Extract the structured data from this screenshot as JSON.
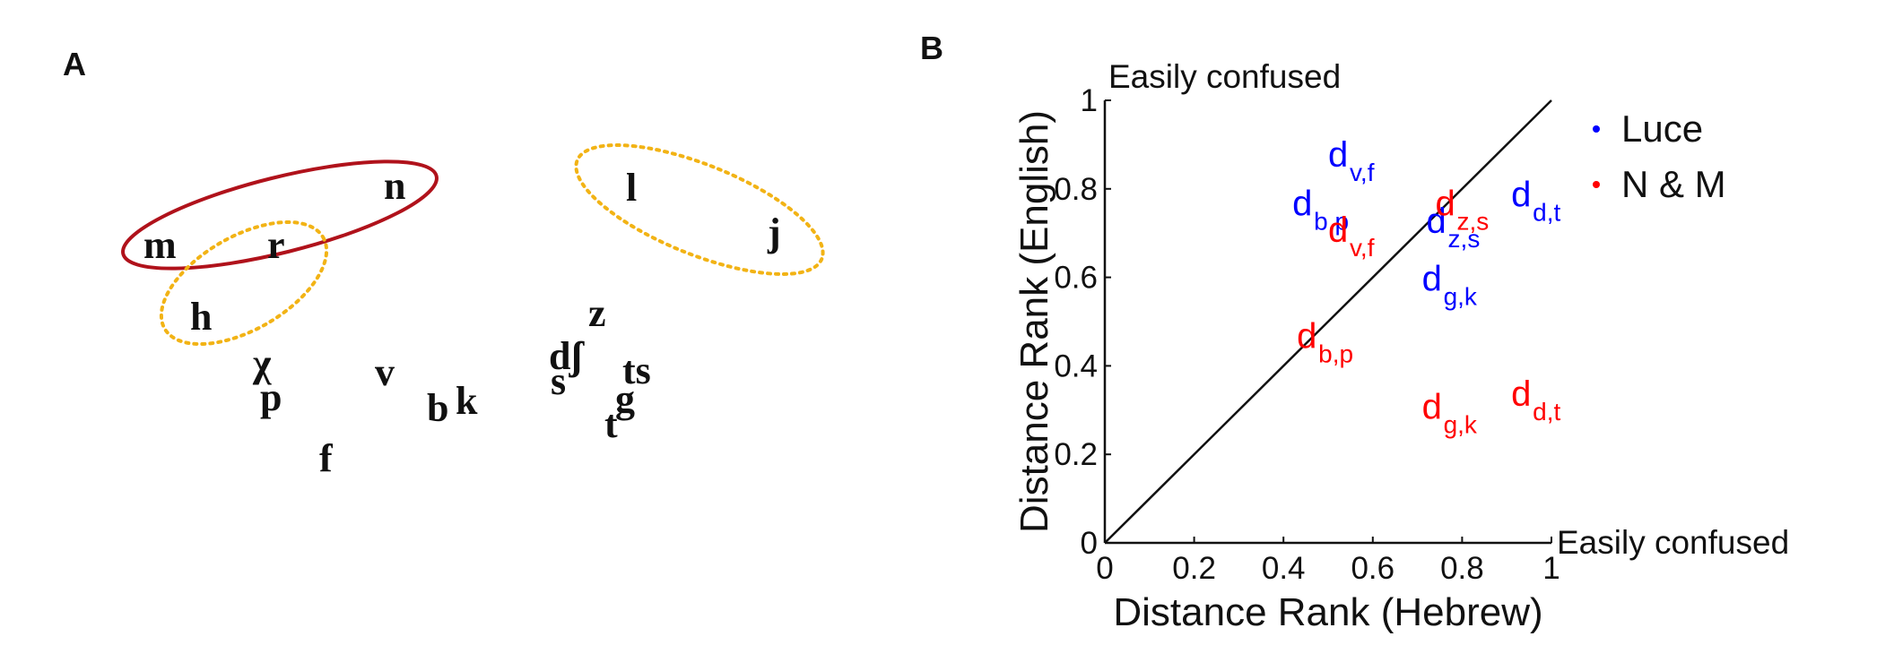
{
  "panel_a": {
    "label": "A",
    "phonemes": [
      "m",
      "r",
      "n",
      "h",
      "l",
      "j",
      "z",
      "χ",
      "p",
      "v",
      "b",
      "k",
      "dʃ",
      "s",
      "ts",
      "g",
      "t",
      "f"
    ],
    "clusters": [
      {
        "members": [
          "m",
          "r",
          "n"
        ],
        "color": "#b0121b",
        "style": "solid"
      },
      {
        "members": [
          "r",
          "h"
        ],
        "color": "#f2b315",
        "style": "dotted"
      },
      {
        "members": [
          "l",
          "j"
        ],
        "color": "#f2b315",
        "style": "dotted"
      }
    ]
  },
  "panel_b": {
    "label": "B",
    "corner_top": "Easily confused",
    "corner_right": "Easily confused",
    "legend": [
      {
        "name": "Luce",
        "color": "#0000ff"
      },
      {
        "name": "N & M",
        "color": "#ff0000"
      }
    ]
  },
  "chart_data": {
    "type": "scatter",
    "xlabel": "Distance Rank (Hebrew)",
    "ylabel": "Distance Rank (English)",
    "xlim": [
      0,
      1
    ],
    "ylim": [
      0,
      1
    ],
    "xticks": [
      "0",
      "0.2",
      "0.4",
      "0.6",
      "0.8",
      "1"
    ],
    "yticks": [
      "0",
      "0.2",
      "0.4",
      "0.6",
      "0.8",
      "1"
    ],
    "grid": false,
    "legend_position": "top-right, outside",
    "reference_line": "y = x",
    "series": [
      {
        "name": "Luce",
        "color": "#0000ff",
        "points": [
          {
            "label": "d",
            "sub": "v,f",
            "x": 0.5,
            "y": 0.85
          },
          {
            "label": "d",
            "sub": "b,p",
            "x": 0.42,
            "y": 0.74
          },
          {
            "label": "d",
            "sub": "z,s",
            "x": 0.72,
            "y": 0.7
          },
          {
            "label": "d",
            "sub": "d,t",
            "x": 0.91,
            "y": 0.76
          },
          {
            "label": "d",
            "sub": "g,k",
            "x": 0.71,
            "y": 0.57
          }
        ]
      },
      {
        "name": "N & M",
        "color": "#ff0000",
        "points": [
          {
            "label": "d",
            "sub": "v,f",
            "x": 0.5,
            "y": 0.68
          },
          {
            "label": "d",
            "sub": "z,s",
            "x": 0.74,
            "y": 0.74
          },
          {
            "label": "d",
            "sub": "b,p",
            "x": 0.43,
            "y": 0.44
          },
          {
            "label": "d",
            "sub": "g,k",
            "x": 0.71,
            "y": 0.28
          },
          {
            "label": "d",
            "sub": "d,t",
            "x": 0.91,
            "y": 0.31
          }
        ]
      }
    ]
  }
}
